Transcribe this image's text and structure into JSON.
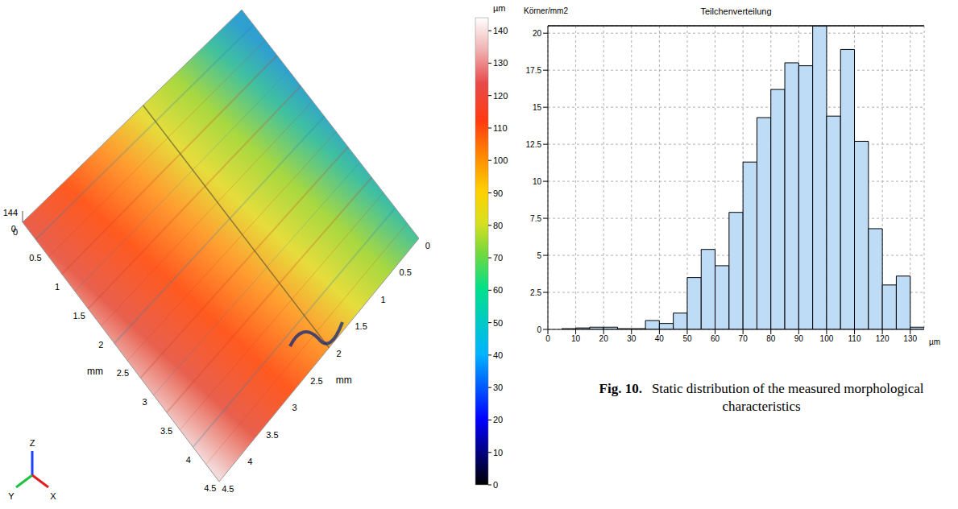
{
  "surface_plot": {
    "type": "surface",
    "colorbar_label": "µm",
    "colorbar_range": [
      0,
      144
    ],
    "colorbar_ticks": [
      0,
      10,
      20,
      30,
      40,
      50,
      60,
      70,
      80,
      90,
      100,
      110,
      120,
      130,
      140
    ],
    "x_label": "mm",
    "y_label": "mm",
    "xlim": [
      0,
      4.5
    ],
    "ylim": [
      0,
      4.5
    ],
    "xticks": [
      0,
      0.5,
      1,
      1.5,
      2,
      2.5,
      3,
      3.5,
      4,
      4.5
    ],
    "yticks": [
      0,
      0.5,
      1,
      1.5,
      2,
      2.5,
      3,
      3.5,
      4,
      4.5
    ],
    "z_labels": [
      144,
      0
    ],
    "axis_names": [
      "X",
      "Y",
      "Z"
    ]
  },
  "chart_data": {
    "type": "histogram",
    "title": "Teilchenverteilung",
    "y_label": "Körner/mm2",
    "x_label": "µm",
    "bins": [
      5,
      10,
      15,
      20,
      25,
      30,
      35,
      40,
      45,
      50,
      55,
      60,
      65,
      70,
      75,
      80,
      85,
      90,
      95,
      100,
      105,
      110,
      115,
      120,
      125,
      130,
      135
    ],
    "values": [
      0.05,
      0.1,
      0.15,
      0.15,
      0.05,
      0.05,
      0.6,
      0.4,
      1.1,
      3.5,
      5.4,
      4.3,
      7.9,
      11.3,
      14.3,
      16.2,
      18.0,
      17.8,
      20.5,
      14.4,
      18.9,
      12.7,
      6.8,
      3.0,
      3.6,
      0.15
    ],
    "color": "#bfdcf7",
    "xlim": [
      0,
      135
    ],
    "xticks": [
      0,
      10,
      20,
      30,
      40,
      50,
      60,
      70,
      80,
      90,
      100,
      110,
      120,
      130
    ],
    "ylim": [
      0,
      20.5
    ],
    "yticks": [
      0,
      2.5,
      5,
      7.5,
      10,
      12.5,
      15,
      17.5,
      20
    ],
    "grid": true
  },
  "caption": {
    "label": "Fig. 10.",
    "text": "Static distribution of the measured morphological characteristics"
  }
}
